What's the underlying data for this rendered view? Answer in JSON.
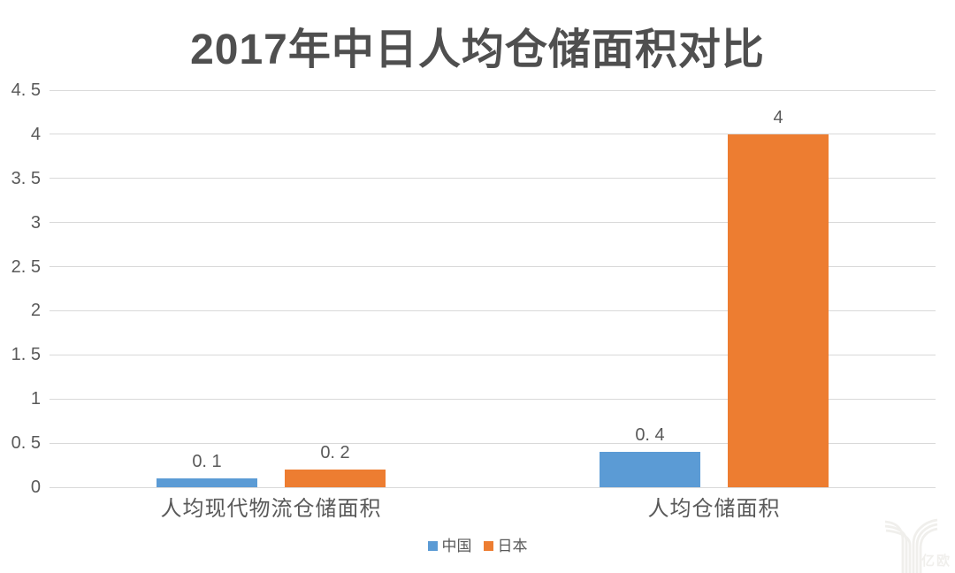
{
  "colors": {
    "china_blue": "#5B9BD5",
    "japan_orange": "#ED7D31",
    "text": "#595959",
    "title_text": "#4f4f4f",
    "gridline": "#D9D9D9",
    "watermark": "#F0EFEC"
  },
  "legend": [
    {
      "key": "china",
      "label": "中国",
      "color": "#5B9BD5"
    },
    {
      "key": "japan",
      "label": "日本",
      "color": "#ED7D31"
    }
  ],
  "watermark": {
    "text": "亿欧"
  },
  "chart_data": {
    "type": "bar",
    "title": "2017年中日人均仓储面积对比",
    "categories": [
      "人均现代物流仓储面积",
      "人均仓储面积"
    ],
    "series": [
      {
        "key": "china",
        "name": "中国",
        "color": "#5B9BD5",
        "values": [
          0.1,
          0.4
        ],
        "value_labels": [
          "0. 1",
          "0. 4"
        ]
      },
      {
        "key": "japan",
        "name": "日本",
        "color": "#ED7D31",
        "values": [
          0.2,
          4
        ],
        "value_labels": [
          "0. 2",
          "4"
        ]
      }
    ],
    "xlabel": "",
    "ylabel": "",
    "ylim": [
      0,
      4.5
    ],
    "yticks": [
      {
        "value": 0,
        "label": "0"
      },
      {
        "value": 0.5,
        "label": "0. 5"
      },
      {
        "value": 1,
        "label": "1"
      },
      {
        "value": 1.5,
        "label": "1. 5"
      },
      {
        "value": 2,
        "label": "2"
      },
      {
        "value": 2.5,
        "label": "2. 5"
      },
      {
        "value": 3,
        "label": "3"
      },
      {
        "value": 3.5,
        "label": "3. 5"
      },
      {
        "value": 4,
        "label": "4"
      },
      {
        "value": 4.5,
        "label": "4. 5"
      }
    ],
    "grid": true,
    "legend_position": "bottom"
  }
}
